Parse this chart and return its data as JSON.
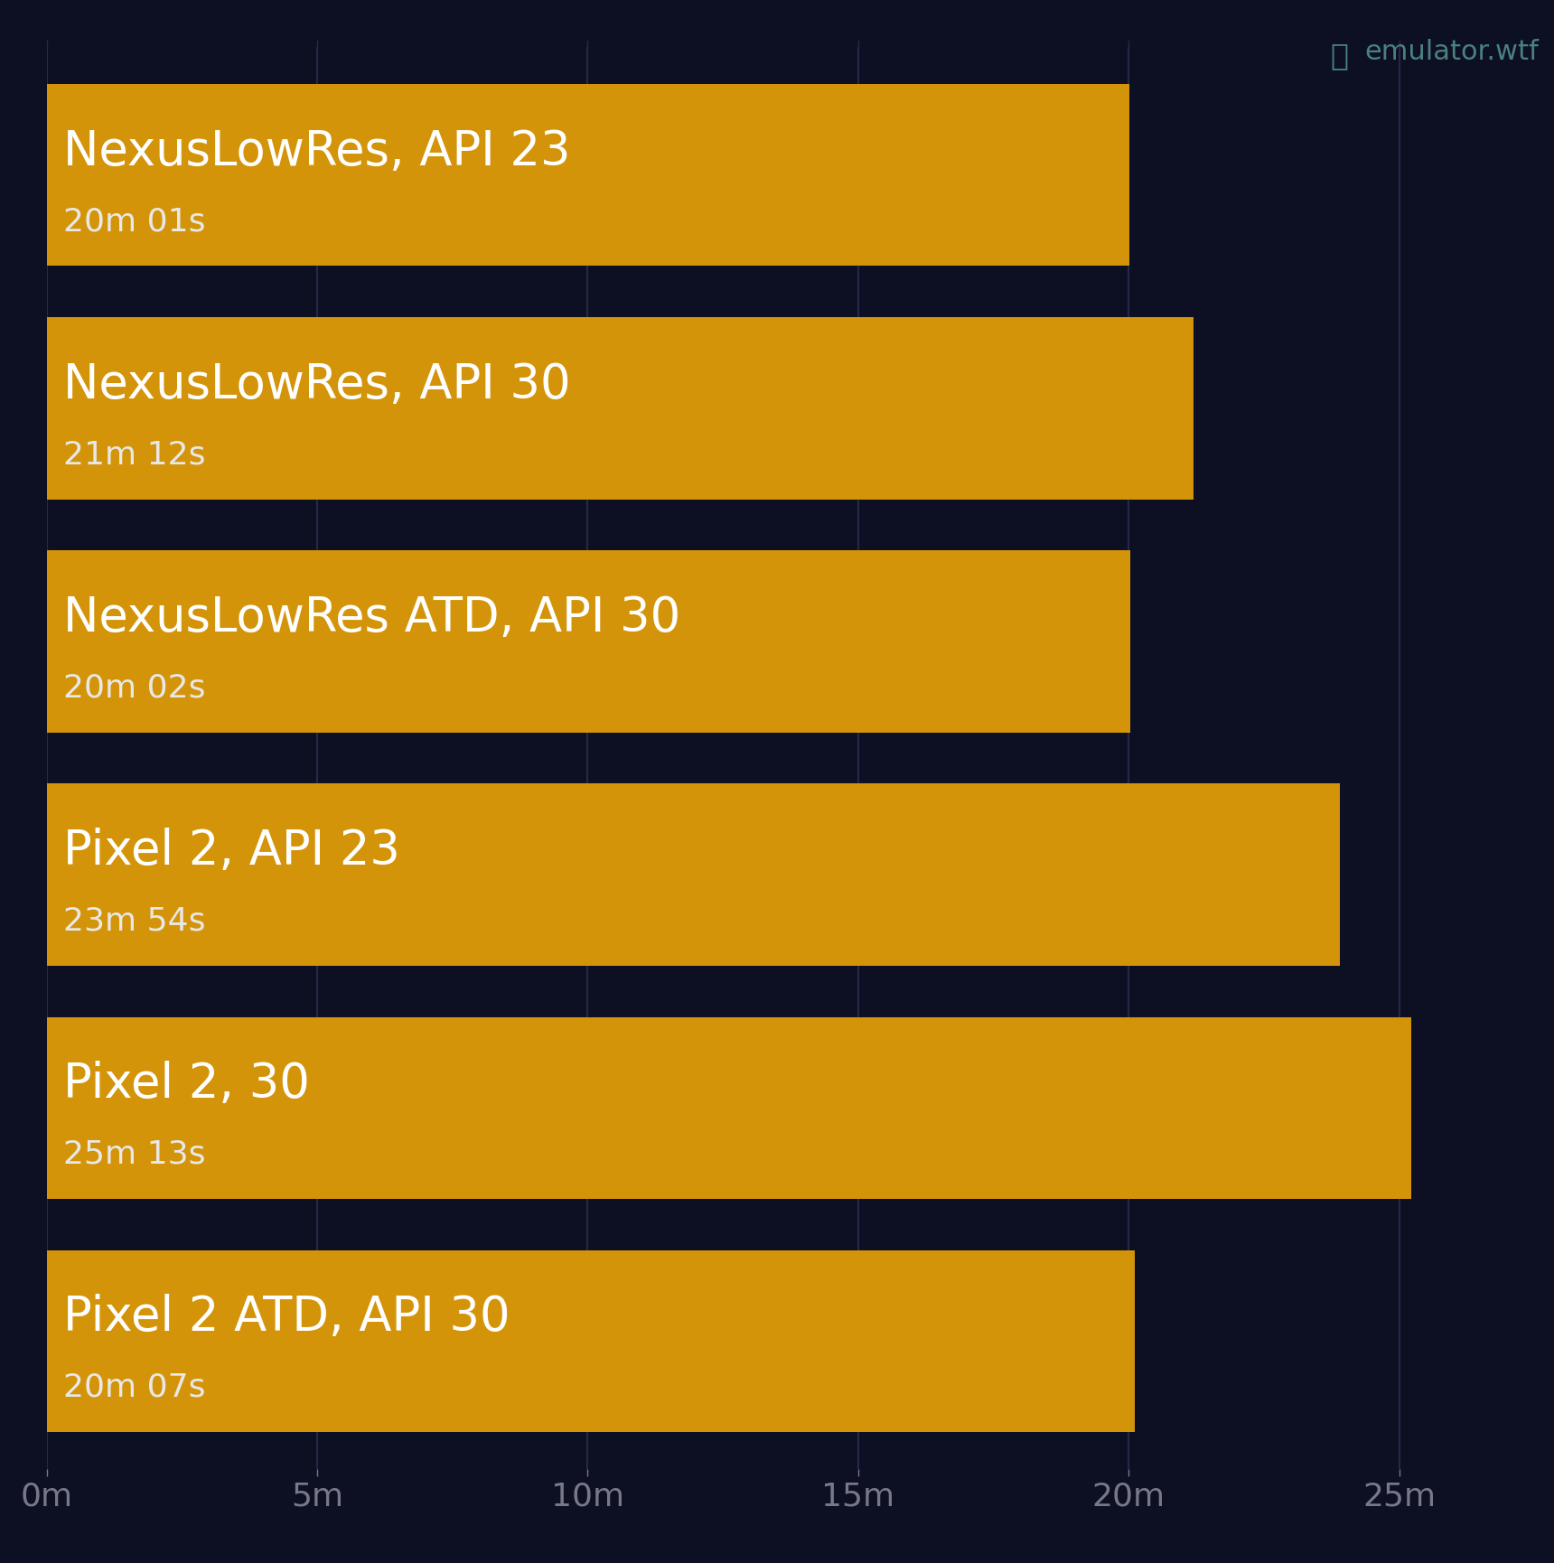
{
  "background_color": "#0d1022",
  "bar_color": "#d4940a",
  "text_color_primary": "#ffffff",
  "text_color_secondary": "#e8e8e8",
  "grid_color": "#252848",
  "tick_color": "#777888",
  "watermark": "emulator.wtf",
  "watermark_color": "#4a8080",
  "categories": [
    "NexusLowRes, API 23",
    "NexusLowRes, API 30",
    "NexusLowRes ATD, API 30",
    "Pixel 2, API 23",
    "Pixel 2, 30",
    "Pixel 2 ATD, API 30"
  ],
  "subtitles": [
    "20m 01s",
    "21m 12s",
    "20m 02s",
    "23m 54s",
    "25m 13s",
    "20m 07s"
  ],
  "values_minutes": [
    20.0167,
    21.2,
    20.0333,
    23.9,
    25.2167,
    20.1167
  ],
  "xlim": [
    0,
    27
  ],
  "xticks": [
    0,
    5,
    10,
    15,
    20,
    25
  ],
  "xtick_labels": [
    "0m",
    "5m",
    "10m",
    "15m",
    "20m",
    "25m"
  ],
  "title_fontsize": 38,
  "subtitle_fontsize": 26,
  "tick_fontsize": 26,
  "watermark_fontsize": 22,
  "bar_height": 0.78,
  "bar_spacing": 1.0
}
